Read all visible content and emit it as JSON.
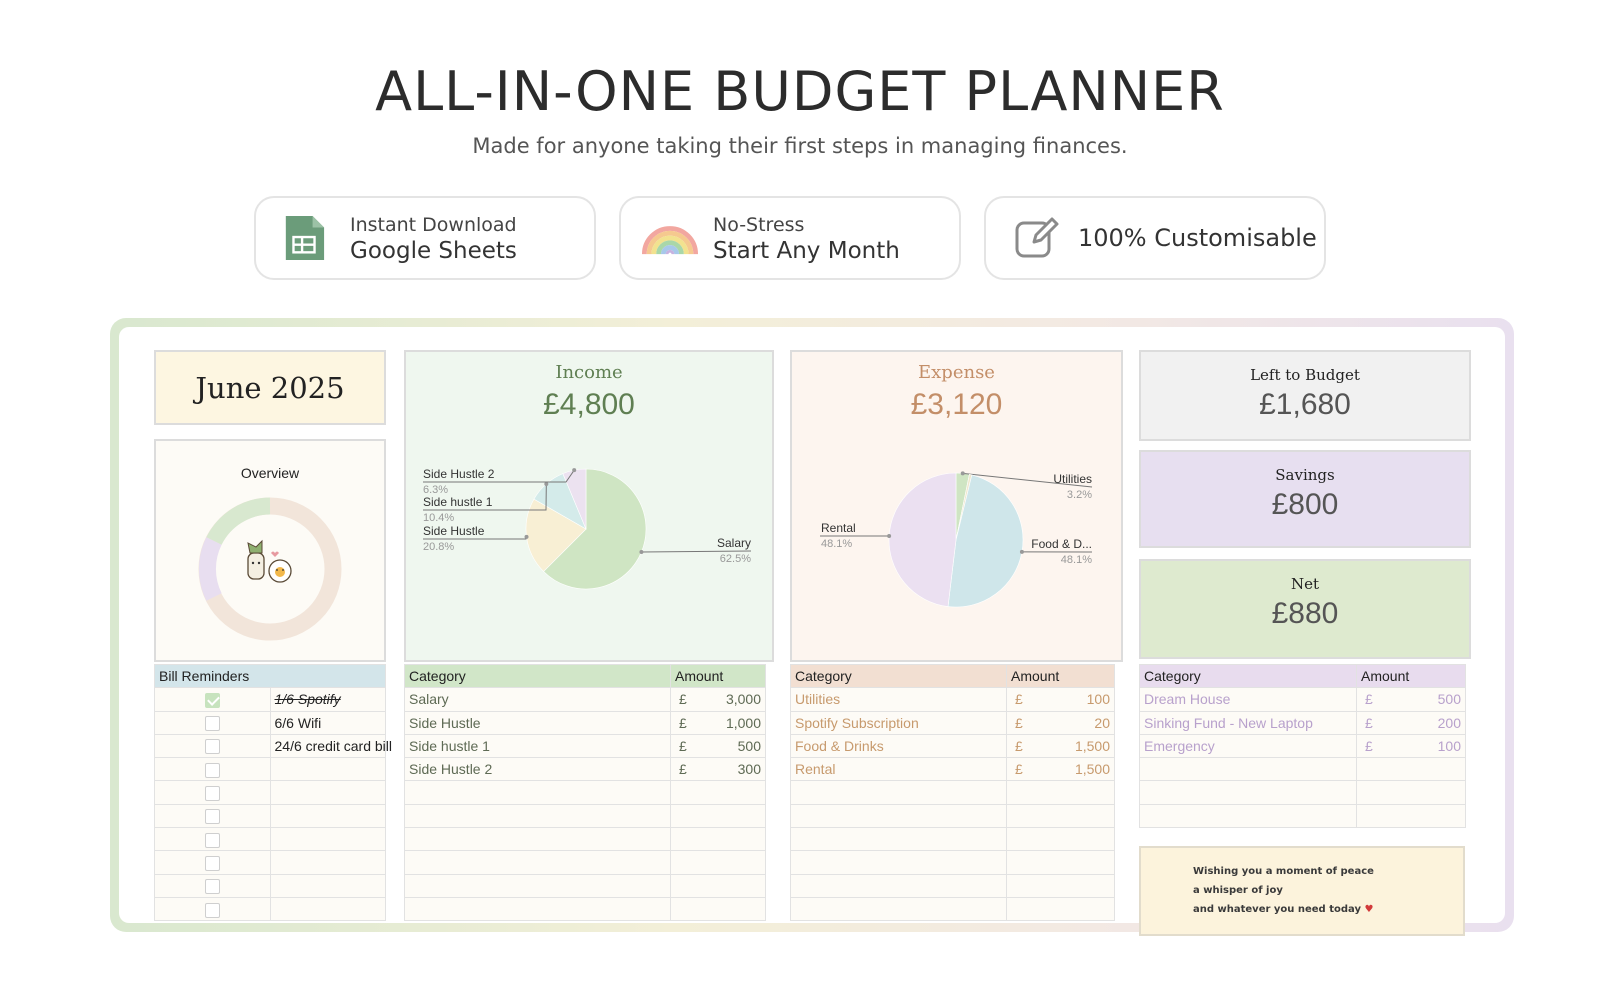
{
  "header": {
    "title": "ALL-IN-ONE BUDGET PLANNER",
    "subtitle": "Made for anyone taking their first steps in managing finances."
  },
  "features": [
    {
      "small": "Instant Download",
      "big": "Google Sheets",
      "icon": "google-sheets-icon"
    },
    {
      "small": "No-Stress",
      "big": "Start Any Month",
      "icon": "rainbow-icon"
    },
    {
      "big": "100% Customisable",
      "icon": "edit-icon"
    }
  ],
  "sheet": {
    "month": "June 2025",
    "overview": {
      "title": "Overview"
    },
    "income": {
      "title": "Income",
      "total": "£4,800"
    },
    "expense": {
      "title": "Expense",
      "total": "£3,120"
    },
    "left_to_budget": {
      "title": "Left to Budget",
      "value": "£1,680"
    },
    "savings": {
      "title": "Savings",
      "value": "£800"
    },
    "net": {
      "title": "Net",
      "value": "£880"
    },
    "bills": {
      "header": "Bill Reminders",
      "items": [
        {
          "label": "1/6 Spotify",
          "checked": true
        },
        {
          "label": "6/6 Wifi",
          "checked": false
        },
        {
          "label": "24/6 credit card bill",
          "checked": false
        },
        {
          "label": "",
          "checked": false
        },
        {
          "label": "",
          "checked": false
        },
        {
          "label": "",
          "checked": false
        },
        {
          "label": "",
          "checked": false
        },
        {
          "label": "",
          "checked": false
        },
        {
          "label": "",
          "checked": false
        },
        {
          "label": "",
          "checked": false
        }
      ]
    },
    "income_table": {
      "headers": [
        "Category",
        "Amount"
      ],
      "currency": "£",
      "rows": [
        {
          "category": "Salary",
          "amount": "3,000"
        },
        {
          "category": "Side Hustle",
          "amount": "1,000"
        },
        {
          "category": "Side hustle 1",
          "amount": "500"
        },
        {
          "category": "Side Hustle 2",
          "amount": "300"
        }
      ]
    },
    "expense_table": {
      "headers": [
        "Category",
        "Amount"
      ],
      "currency": "£",
      "rows": [
        {
          "category": "Utilities",
          "amount": "100"
        },
        {
          "category": "Spotify Subscription",
          "amount": "20"
        },
        {
          "category": "Food & Drinks",
          "amount": "1,500"
        },
        {
          "category": "Rental",
          "amount": "1,500"
        }
      ]
    },
    "savings_table": {
      "headers": [
        "Category",
        "Amount"
      ],
      "currency": "£",
      "rows": [
        {
          "category": "Dream House",
          "amount": "500"
        },
        {
          "category": "Sinking Fund - New Laptop",
          "amount": "200"
        },
        {
          "category": "Emergency",
          "amount": "100"
        }
      ]
    },
    "quote": {
      "lines": [
        "Wishing you a moment of peace",
        "a whisper of joy",
        "and whatever you need today"
      ]
    }
  },
  "colors": {
    "income_green": "#5f7f52",
    "expense_orange": "#c38e68",
    "income_row_text": "#5e6a54",
    "expense_row_text": "#c79a6d",
    "savings_row_text": "#b8a1cc",
    "bill_header": "#d3e5ea",
    "income_header": "#d1e6c8",
    "expense_header": "#f2dfd2",
    "savings_header": "#e8dcee"
  },
  "chart_data": [
    {
      "type": "pie",
      "categories": [
        "Salary",
        "Side Hustle",
        "Side hustle 1",
        "Side Hustle 2"
      ],
      "labels": [
        "Salary",
        "Side Hustle",
        "Side hustle 1",
        "Side Hustle 2"
      ],
      "values": [
        62.5,
        20.8,
        10.4,
        6.3
      ],
      "value_labels": [
        "62.5%",
        "20.8%",
        "10.4%",
        "6.3%"
      ],
      "colors": [
        "#cfe5c3",
        "#f8efd4",
        "#d4ebea",
        "#ece2f0"
      ],
      "legend": "none"
    },
    {
      "type": "pie",
      "categories": [
        "Utilities",
        "Spotify Subscription",
        "Food & Drinks",
        "Rental"
      ],
      "labels": [
        "Utilities",
        "",
        "Food & D...",
        "Rental"
      ],
      "values": [
        3.2,
        0.6,
        48.1,
        48.1
      ],
      "value_labels": [
        "3.2%",
        "",
        "48.1%",
        "48.1%"
      ],
      "colors": [
        "#cfe5c3",
        "#f0e8cf",
        "#cfe6ea",
        "#ebe0f1"
      ],
      "legend": "none"
    }
  ]
}
